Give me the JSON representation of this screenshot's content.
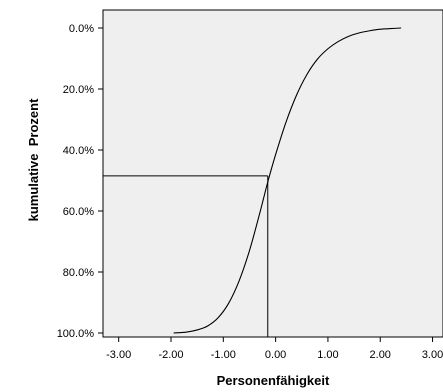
{
  "chart_data": {
    "type": "line",
    "xlabel": "Personenfähigkeit",
    "ylabel": "kumulative  Prozent",
    "xlim": [
      -3.3,
      3.2
    ],
    "ylim": [
      0,
      100
    ],
    "y_reversed": true,
    "x_ticks": [
      -3,
      -2,
      -1,
      0,
      1,
      2,
      3
    ],
    "x_tick_labels": [
      "-3.00",
      "-2.00",
      "-1.00",
      "0.00",
      "1.00",
      "2.00",
      "3.00"
    ],
    "y_ticks": [
      0,
      20,
      40,
      60,
      80,
      100
    ],
    "y_tick_labels": [
      "0.0%",
      "20.0%",
      "40.0%",
      "60.0%",
      "80.0%",
      "100.0%"
    ],
    "grid": false,
    "plot_background": "#efefef",
    "line_color": "#000000",
    "series": [
      {
        "x": [
          -1.95,
          -1.7,
          -1.5,
          -1.3,
          -1.1,
          -0.9,
          -0.7,
          -0.5,
          -0.3,
          -0.15,
          0.0,
          0.2,
          0.4,
          0.6,
          0.8,
          1.0,
          1.2,
          1.4,
          1.6,
          1.8,
          2.0,
          2.2,
          2.4
        ],
        "y": [
          100,
          99.7,
          99.0,
          97.7,
          95.0,
          90.3,
          83.0,
          73.0,
          60.5,
          50.5,
          41.5,
          30.8,
          22.0,
          15.2,
          10.2,
          6.8,
          4.4,
          2.7,
          1.6,
          0.9,
          0.4,
          0.2,
          0.0
        ]
      }
    ],
    "reference_point": {
      "x": -0.15,
      "y": 48.5
    }
  }
}
